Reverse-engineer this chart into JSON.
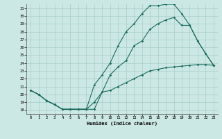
{
  "xlabel": "Humidex (Indice chaleur)",
  "bg_color": "#cce8e4",
  "line_color": "#1a6b5e",
  "grid_color": "#a8cdc9",
  "xlim": [
    -0.5,
    23.5
  ],
  "ylim": [
    17.5,
    31.5
  ],
  "xticks": [
    0,
    1,
    2,
    3,
    4,
    5,
    6,
    7,
    8,
    9,
    10,
    11,
    12,
    13,
    14,
    15,
    16,
    17,
    18,
    19,
    20,
    21,
    22,
    23
  ],
  "yticks": [
    18,
    19,
    20,
    21,
    22,
    23,
    24,
    25,
    26,
    27,
    28,
    29,
    30,
    31
  ],
  "line1_x": [
    0,
    1,
    2,
    3,
    4,
    5,
    6,
    7,
    8,
    9,
    10,
    11,
    12,
    13,
    14,
    15,
    16,
    17,
    18,
    19,
    20,
    21,
    22,
    23
  ],
  "line1_y": [
    20.5,
    20.0,
    19.2,
    18.7,
    18.1,
    18.1,
    18.1,
    18.1,
    18.1,
    20.3,
    20.5,
    21.0,
    21.5,
    22.0,
    22.5,
    23.0,
    23.2,
    23.4,
    23.5,
    23.6,
    23.7,
    23.8,
    23.8,
    23.7
  ],
  "line2_x": [
    0,
    1,
    2,
    3,
    4,
    5,
    6,
    7,
    8,
    9,
    10,
    11,
    12,
    13,
    14,
    15,
    16,
    17,
    18,
    19,
    20,
    21,
    22,
    23
  ],
  "line2_y": [
    20.5,
    20.0,
    19.2,
    18.7,
    18.1,
    18.1,
    18.1,
    18.1,
    21.2,
    22.5,
    24.0,
    26.2,
    28.0,
    29.0,
    30.3,
    31.3,
    31.3,
    31.5,
    31.5,
    30.3,
    28.8,
    26.8,
    25.2,
    23.7
  ],
  "line3_x": [
    0,
    1,
    2,
    3,
    4,
    5,
    6,
    7,
    8,
    9,
    10,
    11,
    12,
    13,
    14,
    15,
    16,
    17,
    18,
    19,
    20,
    21,
    22,
    23
  ],
  "line3_y": [
    20.5,
    20.0,
    19.2,
    18.7,
    18.1,
    18.1,
    18.1,
    18.1,
    19.0,
    20.3,
    22.5,
    23.5,
    24.3,
    26.2,
    26.8,
    28.3,
    29.0,
    29.5,
    29.8,
    28.8,
    28.8,
    26.8,
    25.2,
    23.7
  ]
}
